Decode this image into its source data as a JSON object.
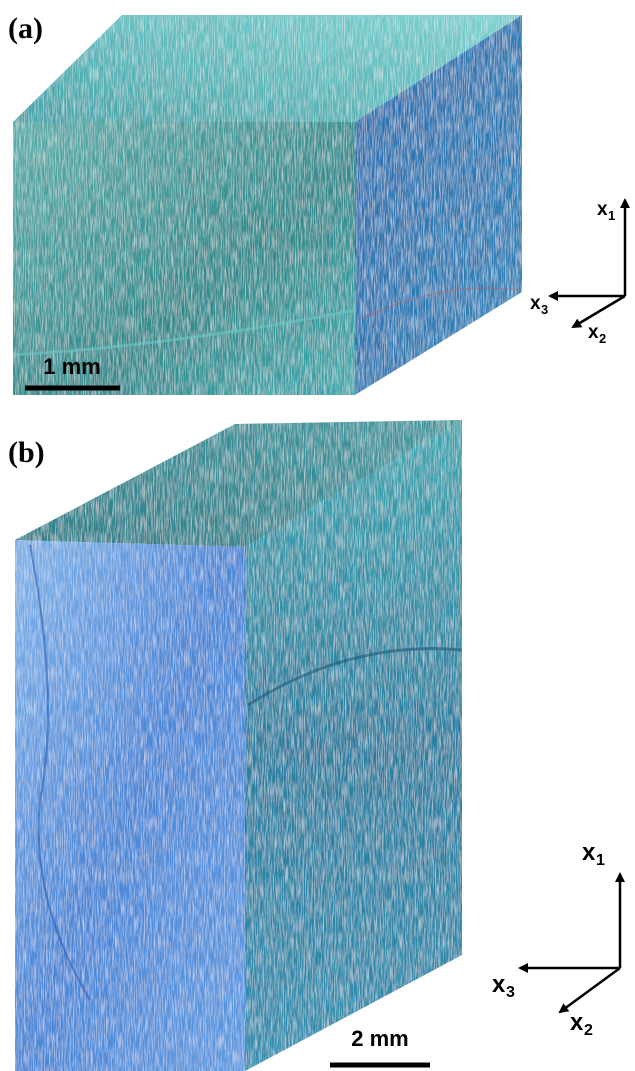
{
  "panels": [
    {
      "label": "(a)",
      "scale_bar": "1 mm",
      "axes": [
        {
          "symbol": "x",
          "index": "1"
        },
        {
          "symbol": "x",
          "index": "3"
        },
        {
          "symbol": "x",
          "index": "2"
        }
      ]
    },
    {
      "label": "(b)",
      "scale_bar": "2 mm",
      "axes": [
        {
          "symbol": "x",
          "index": "1"
        },
        {
          "symbol": "x",
          "index": "3"
        },
        {
          "symbol": "x",
          "index": "2"
        }
      ]
    }
  ]
}
